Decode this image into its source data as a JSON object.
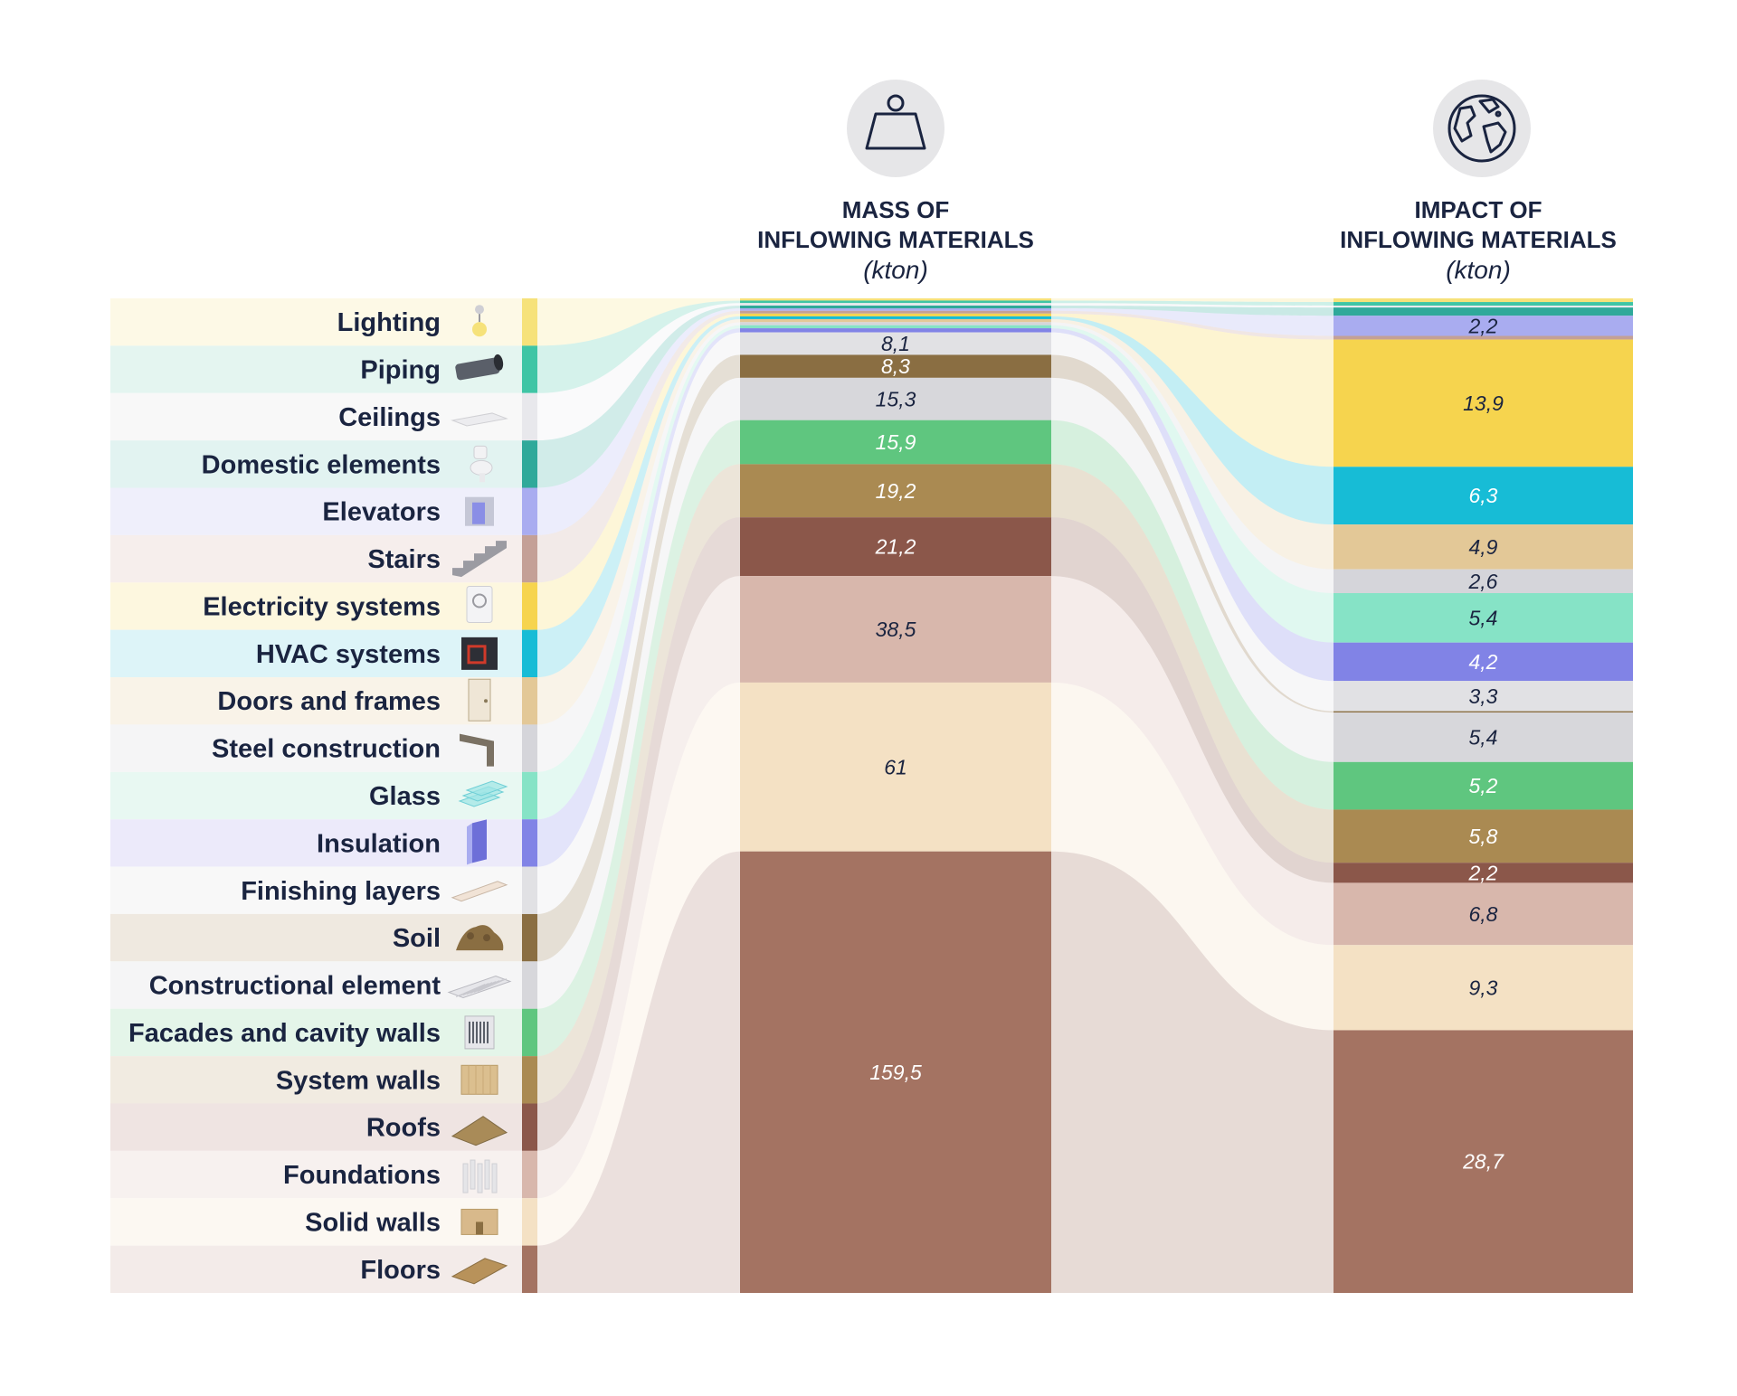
{
  "headers": {
    "mass": {
      "line1": "MASS OF",
      "line2": "INFLOWING MATERIALS",
      "unit": "(kton)",
      "icon": "weight-icon"
    },
    "impact": {
      "line1": "IMPACT OF",
      "line2": "INFLOWING MATERIALS",
      "unit": "(kton)",
      "icon": "globe-icon"
    }
  },
  "categories": [
    {
      "label": "Lighting",
      "icon": "ceiling-lamp-icon",
      "color": "#f6e27a",
      "band": "#fdf9e6",
      "mass": 0.8,
      "impact": 0.4
    },
    {
      "label": "Piping",
      "icon": "pipe-icon",
      "color": "#3fc5a5",
      "band": "#e4f5f0",
      "mass": 0.9,
      "impact": 0.4
    },
    {
      "label": "Ceilings",
      "icon": "ceiling-panel-icon",
      "color": "#e8e8ec",
      "band": "#f8f8f8",
      "mass": 0.9,
      "impact": 0.2
    },
    {
      "label": "Domestic elements",
      "icon": "toilet-icon",
      "color": "#2fa99a",
      "band": "#e2f3f1",
      "mass": 1.0,
      "impact": 0.9
    },
    {
      "label": "Elevators",
      "icon": "elevator-icon",
      "color": "#a9acf0",
      "band": "#efeffb",
      "mass": 0.9,
      "impact": 2.2,
      "impact_label": "2,2"
    },
    {
      "label": "Stairs",
      "icon": "stairs-icon",
      "color": "#c4a097",
      "band": "#f6eeec",
      "mass": 1.0,
      "impact": 0.4
    },
    {
      "label": "Electricity systems",
      "icon": "electric-box-icon",
      "color": "#f6d44e",
      "band": "#fdf7df",
      "mass": 1.0,
      "impact": 13.9,
      "impact_label": "13,9"
    },
    {
      "label": "HVAC systems",
      "icon": "hvac-unit-icon",
      "color": "#17bcd6",
      "band": "#ddf4f8",
      "mass": 1.0,
      "impact": 6.3,
      "impact_label": "6,3"
    },
    {
      "label": "Doors and frames",
      "icon": "door-icon",
      "color": "#e3c897",
      "band": "#f9f3e8",
      "mass": 1.1,
      "impact": 4.9,
      "impact_label": "4,9"
    },
    {
      "label": "Steel construction",
      "icon": "steel-beam-icon",
      "color": "#d5d5da",
      "band": "#f5f5f6",
      "mass": 1.1,
      "impact": 2.6,
      "impact_label": "2,6"
    },
    {
      "label": "Glass",
      "icon": "glass-panes-icon",
      "color": "#86e3c6",
      "band": "#e8f8f2",
      "mass": 1.1,
      "impact": 5.4,
      "impact_label": "5,4"
    },
    {
      "label": "Insulation",
      "icon": "insulation-board-icon",
      "color": "#8183e6",
      "band": "#eceafa",
      "mass": 1.5,
      "impact": 4.2,
      "impact_label": "4,2"
    },
    {
      "label": "Finishing layers",
      "icon": "finishing-layer-icon",
      "color": "#e1e1e4",
      "band": "#f8f8f8",
      "mass": 8.1,
      "mass_label": "8,1",
      "impact": 3.3,
      "impact_label": "3,3"
    },
    {
      "label": "Soil",
      "icon": "soil-pile-icon",
      "color": "#8a6e42",
      "band": "#efe9e0",
      "mass": 8.3,
      "mass_label": "8,3",
      "impact": 0.15
    },
    {
      "label": "Constructional element",
      "icon": "beam-grid-icon",
      "color": "#d7d7db",
      "band": "#f5f5f6",
      "mass": 15.3,
      "mass_label": "15,3",
      "impact": 5.4,
      "impact_label": "5,4"
    },
    {
      "label": "Facades and cavity walls",
      "icon": "facade-icon",
      "color": "#5fc67f",
      "band": "#e4f5e9",
      "mass": 15.9,
      "mass_label": "15,9",
      "impact": 5.2,
      "impact_label": "5,2"
    },
    {
      "label": "System walls",
      "icon": "wall-panel-icon",
      "color": "#aa8a52",
      "band": "#f1ebe1",
      "mass": 19.2,
      "mass_label": "19,2",
      "impact": 5.8,
      "impact_label": "5,8"
    },
    {
      "label": "Roofs",
      "icon": "roof-icon",
      "color": "#8b574a",
      "band": "#efe4e2",
      "mass": 21.2,
      "mass_label": "21,2",
      "impact": 2.2,
      "impact_label": "2,2"
    },
    {
      "label": "Foundations",
      "icon": "foundation-piles-icon",
      "color": "#d8b7ac",
      "band": "#f7f1ef",
      "mass": 38.5,
      "mass_label": "38,5",
      "impact": 6.8,
      "impact_label": "6,8"
    },
    {
      "label": "Solid walls",
      "icon": "solid-wall-icon",
      "color": "#f4e1c4",
      "band": "#fcf8f2",
      "mass": 61,
      "mass_label": "61",
      "impact": 9.3,
      "impact_label": "9,3"
    },
    {
      "label": "Floors",
      "icon": "floor-slab-icon",
      "color": "#a47362",
      "band": "#f3ebe9",
      "mass": 159.5,
      "mass_label": "159,5",
      "impact": 28.7,
      "impact_label": "28,7"
    }
  ]
}
